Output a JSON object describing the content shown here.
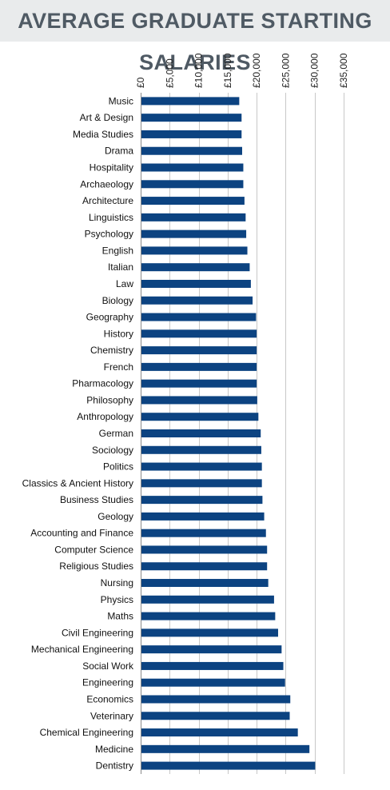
{
  "chart_data": {
    "type": "bar",
    "orientation": "horizontal",
    "title": "AVERAGE GRADUATE STARTING SALARIES",
    "xlabel": "",
    "ylabel": "",
    "xlim": [
      0,
      35000
    ],
    "x_ticks": [
      0,
      5000,
      10000,
      15000,
      20000,
      25000,
      30000,
      35000
    ],
    "x_tick_labels": [
      "£0",
      "£5,000",
      "£10,000",
      "£15,000",
      "£20,000",
      "£25,000",
      "£30,000",
      "£35,000"
    ],
    "grid": true,
    "bar_color": "#0c4381",
    "categories": [
      "Music",
      "Art & Design",
      "Media Studies",
      "Drama",
      "Hospitality",
      "Archaeology",
      "Architecture",
      "Linguistics",
      "Psychology",
      "English",
      "Italian",
      "Law",
      "Biology",
      "Geography",
      "History",
      "Chemistry",
      "French",
      "Pharmacology",
      "Philosophy",
      "Anthropology",
      "German",
      "Sociology",
      "Politics",
      "Classics & Ancient History",
      "Business Studies",
      "Geology",
      "Accounting and Finance",
      "Computer Science",
      "Religious Studies",
      "Nursing",
      "Physics",
      "Maths",
      "Civil Engineering",
      "Mechanical Engineering",
      "Social Work",
      "Engineering",
      "Economics",
      "Veterinary",
      "Chemical Engineering",
      "Medicine",
      "Dentistry"
    ],
    "values": [
      17000,
      17400,
      17400,
      17500,
      17700,
      17700,
      17900,
      18100,
      18200,
      18400,
      18800,
      19000,
      19300,
      19900,
      20000,
      20000,
      20000,
      20000,
      20100,
      20300,
      20700,
      20800,
      20900,
      20900,
      21000,
      21300,
      21600,
      21800,
      21800,
      22000,
      23000,
      23200,
      23700,
      24300,
      24600,
      24900,
      25800,
      25700,
      27100,
      29100,
      30100
    ]
  }
}
